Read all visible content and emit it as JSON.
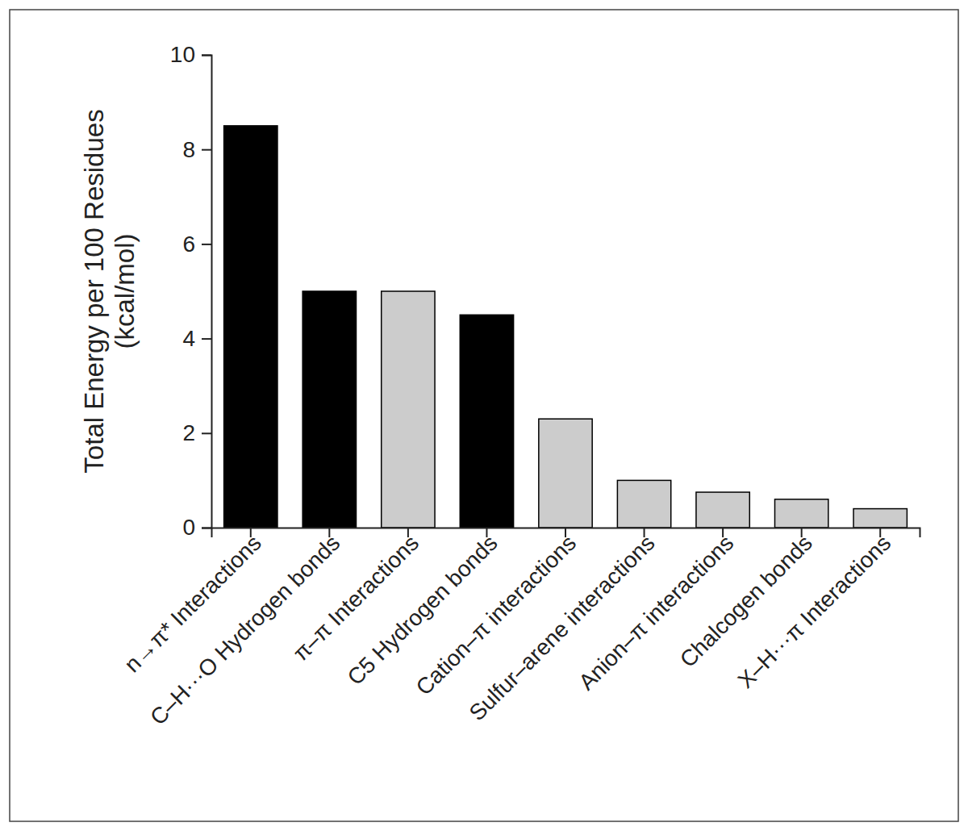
{
  "chart_data": {
    "type": "bar",
    "ylabel": [
      "Total Energy per 100 Residues",
      "(kcal/mol)"
    ],
    "categories": [
      "n→π* Interactions",
      "C–H···O Hydrogen bonds",
      "π–π Interactions",
      "C5 Hydrogen bonds",
      "Cation–π interactions",
      "Sulfur–arene interactions",
      "Anion–π interactions",
      "Chalcogen bonds",
      "X–H···π Interactions"
    ],
    "values": [
      8.5,
      5.0,
      5.0,
      4.5,
      2.3,
      1.0,
      0.75,
      0.6,
      0.4
    ],
    "colors": [
      "#000000",
      "#000000",
      "#cccccc",
      "#000000",
      "#cccccc",
      "#cccccc",
      "#cccccc",
      "#cccccc",
      "#cccccc"
    ],
    "ylim": [
      0,
      10
    ],
    "yticks": [
      0,
      2,
      4,
      6,
      8,
      10
    ],
    "grid": false
  }
}
